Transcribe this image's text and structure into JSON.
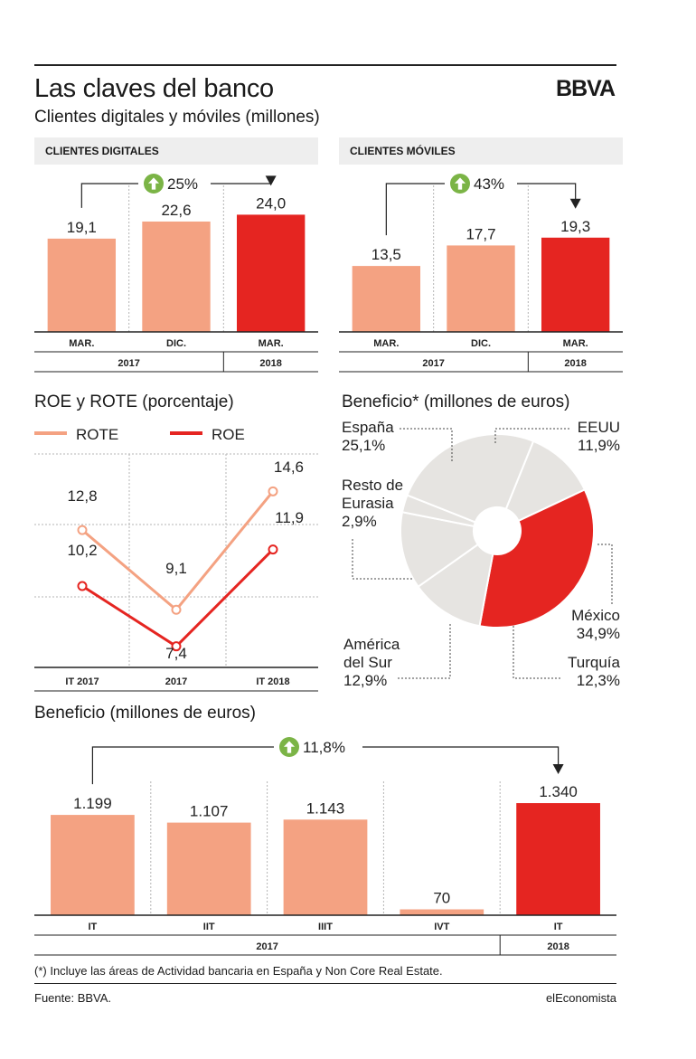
{
  "header": {
    "title": "Las claves del banco",
    "subtitle": "Clientes digitales y móviles (millones)",
    "logo": "BBVA"
  },
  "colors": {
    "light": "#f4a282",
    "accent": "#e52521",
    "pie_grey": "#e6e4e1",
    "arrow_green": "#7bb446"
  },
  "chart_data": [
    {
      "type": "bar",
      "title": "CLIENTES DIGITALES",
      "categories": [
        "MAR.",
        "DIC.",
        "MAR."
      ],
      "values": [
        19.1,
        22.6,
        24.0
      ],
      "value_labels": [
        "19,1",
        "22,6",
        "24,0"
      ],
      "groups": [
        {
          "label": "2017",
          "span": 2
        },
        {
          "label": "2018",
          "span": 1
        }
      ],
      "growth_label": "25%",
      "growth_icon": "up-arrow-icon",
      "ylim": [
        0,
        30
      ]
    },
    {
      "type": "bar",
      "title": "CLIENTES MÓVILES",
      "categories": [
        "MAR.",
        "DIC.",
        "MAR."
      ],
      "values": [
        13.5,
        17.7,
        19.3
      ],
      "value_labels": [
        "13,5",
        "17,7",
        "19,3"
      ],
      "groups": [
        {
          "label": "2017",
          "span": 2
        },
        {
          "label": "2018",
          "span": 1
        }
      ],
      "growth_label": "43%",
      "growth_icon": "up-arrow-icon",
      "ylim": [
        0,
        30
      ]
    },
    {
      "type": "line",
      "title": "ROE y ROTE (porcentaje)",
      "categories": [
        "IT 2017",
        "2017",
        "IT 2018"
      ],
      "series": [
        {
          "name": "ROTE",
          "values": [
            12.8,
            9.1,
            14.6
          ],
          "value_labels": [
            "12,8",
            "9,1",
            "14,6"
          ],
          "color": "#f4a282"
        },
        {
          "name": "ROE",
          "values": [
            10.2,
            7.4,
            11.9
          ],
          "value_labels": [
            "10,2",
            "7,4",
            "11,9"
          ],
          "color": "#e52521"
        }
      ],
      "ylim": [
        6,
        16
      ],
      "grid": true,
      "legend": "top"
    },
    {
      "type": "pie",
      "title": "Beneficio* (millones de euros)",
      "slices": [
        {
          "label": "EEUU",
          "value": 11.9,
          "value_label": "11,9%"
        },
        {
          "label": "México",
          "value": 34.9,
          "value_label": "34,9%"
        },
        {
          "label": "Turquía",
          "value": 12.3,
          "value_label": "12,3%"
        },
        {
          "label": "América del Sur",
          "label_lines": [
            "América",
            "del Sur"
          ],
          "value": 12.9,
          "value_label": "12,9%"
        },
        {
          "label": "Resto de Eurasia",
          "label_lines": [
            "Resto de",
            "Eurasia"
          ],
          "value": 2.9,
          "value_label": "2,9%"
        },
        {
          "label": "España",
          "value": 25.1,
          "value_label": "25,1%"
        }
      ],
      "highlight": "México"
    },
    {
      "type": "bar",
      "title": "Beneficio (millones de euros)",
      "categories": [
        "IT",
        "IIT",
        "IIIT",
        "IVT",
        "IT"
      ],
      "values": [
        1199,
        1107,
        1143,
        70,
        1340
      ],
      "value_labels": [
        "1.199",
        "1.107",
        "1.143",
        "70",
        "1.340"
      ],
      "groups": [
        {
          "label": "2017",
          "span": 4
        },
        {
          "label": "2018",
          "span": 1
        }
      ],
      "growth_label": "11,8%",
      "growth_icon": "up-arrow-icon",
      "ylim": [
        0,
        1600
      ]
    }
  ],
  "footer": {
    "footnote": "(*) Incluye las áreas de Actividad bancaria en España y Non Core Real Estate.",
    "source": "Fuente: BBVA.",
    "credit": "elEconomista"
  }
}
